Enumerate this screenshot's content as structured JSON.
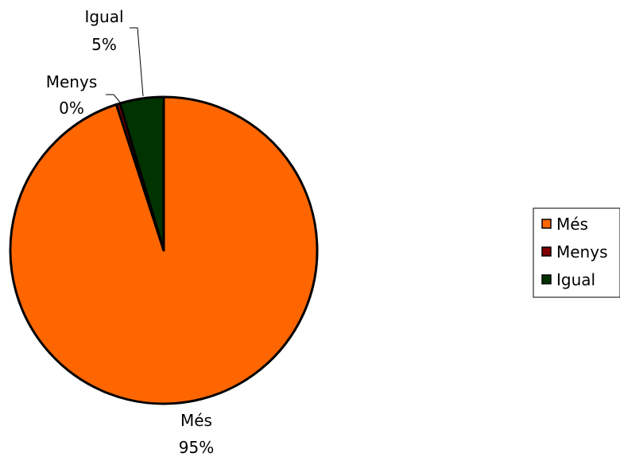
{
  "chart_data": {
    "type": "pie",
    "title": "",
    "slices": [
      {
        "name": "Més",
        "value": 95,
        "label": "Més",
        "percent_label": "95%",
        "color": "#FF6600"
      },
      {
        "name": "Menys",
        "value": 0.4,
        "label": "Menys",
        "percent_label": "0%",
        "color": "#800000"
      },
      {
        "name": "Igual",
        "value": 4.6,
        "label": "Igual",
        "percent_label": "5%",
        "color": "#003300"
      }
    ],
    "legend": {
      "placement": "right",
      "entries": [
        "Més",
        "Menys",
        "Igual"
      ]
    },
    "start_angle": "12 o'clock",
    "direction": "clockwise"
  }
}
